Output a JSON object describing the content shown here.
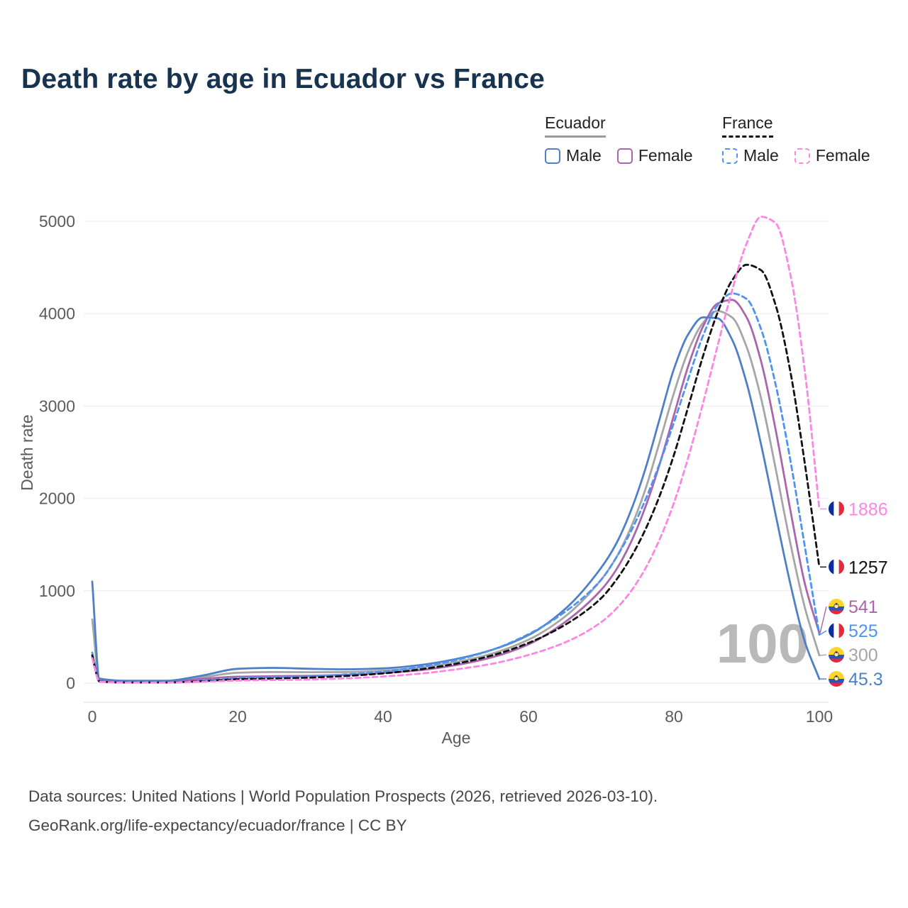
{
  "title": "Death rate by age in Ecuador vs France",
  "watermark": "100",
  "legend": {
    "groups": [
      {
        "label": "Ecuador",
        "style": "solid",
        "items": [
          {
            "label": "Male",
            "color": "#4d80c9"
          },
          {
            "label": "Female",
            "color": "#aa66ad"
          }
        ]
      },
      {
        "label": "France",
        "style": "dashed",
        "items": [
          {
            "label": "Male",
            "color": "#4f93f2"
          },
          {
            "label": "Female",
            "color": "#fb87e3"
          }
        ]
      }
    ]
  },
  "footer": {
    "line1": "Data sources: United Nations | World Population Prospects (2026, retrieved 2026-03-10).",
    "line2": "GeoRank.org/life-expectancy/ecuador/france | CC BY"
  },
  "chart_data": {
    "type": "line",
    "title": "Death rate by age in Ecuador vs France",
    "xlabel": "Age",
    "ylabel": "Death rate",
    "xlim": [
      0,
      100
    ],
    "ylim": [
      0,
      5000
    ],
    "xticks": [
      0,
      20,
      40,
      60,
      80,
      100
    ],
    "yticks": [
      0,
      1000,
      2000,
      3000,
      4000,
      5000
    ],
    "grid": "horizontal",
    "hovered_age": 100,
    "ages": [
      0,
      1,
      5,
      10,
      15,
      20,
      25,
      30,
      35,
      40,
      45,
      50,
      55,
      60,
      65,
      70,
      72,
      74,
      76,
      78,
      80,
      82,
      84,
      86,
      88,
      90,
      92,
      94,
      96,
      98,
      100
    ],
    "series": [
      {
        "name": "Ecuador Both sexes",
        "country": "Ecuador",
        "flag": "ecuador",
        "color": "#a6a6a6",
        "dash": "solid",
        "end_value": 300,
        "end_label": "300",
        "values": [
          690,
          42,
          22,
          22,
          62,
          112,
          120,
          118,
          120,
          135,
          168,
          228,
          320,
          470,
          720,
          1120,
          1350,
          1670,
          2080,
          2600,
          3140,
          3600,
          3900,
          4030,
          3960,
          3640,
          3080,
          2320,
          1520,
          820,
          300
        ]
      },
      {
        "name": "Ecuador Female",
        "country": "Ecuador",
        "flag": "ecuador",
        "color": "#aa66ad",
        "dash": "solid",
        "end_value": 541,
        "end_label": "541",
        "values": [
          280,
          35,
          18,
          18,
          45,
          70,
          75,
          80,
          90,
          110,
          140,
          195,
          280,
          420,
          660,
          1010,
          1220,
          1510,
          1890,
          2360,
          2900,
          3440,
          3860,
          4110,
          4150,
          3960,
          3480,
          2740,
          1880,
          1080,
          541
        ]
      },
      {
        "name": "Ecuador Male",
        "country": "Ecuador",
        "flag": "ecuador",
        "color": "#4d80c9",
        "dash": "solid",
        "end_value": 45.3,
        "end_label": "45.3",
        "values": [
          1100,
          50,
          25,
          25,
          80,
          155,
          165,
          155,
          150,
          160,
          195,
          260,
          360,
          520,
          800,
          1250,
          1500,
          1850,
          2300,
          2850,
          3400,
          3780,
          3960,
          3950,
          3720,
          3250,
          2580,
          1820,
          1080,
          450,
          45.3
        ]
      },
      {
        "name": "France Male",
        "country": "France",
        "flag": "france",
        "color": "#4f93f2",
        "dash": "dashed",
        "end_value": 525,
        "end_label": "525",
        "values": [
          330,
          20,
          8,
          8,
          25,
          55,
          65,
          75,
          95,
          125,
          175,
          250,
          360,
          530,
          770,
          1120,
          1350,
          1630,
          1970,
          2370,
          2820,
          3300,
          3760,
          4090,
          4220,
          4160,
          3830,
          3230,
          2420,
          1480,
          525
        ]
      },
      {
        "name": "France Both sexes",
        "country": "France",
        "flag": "france",
        "color": "#111111",
        "dash": "dashed",
        "end_value": 1257,
        "end_label": "1257",
        "values": [
          300,
          18,
          7,
          7,
          20,
          42,
          50,
          60,
          78,
          105,
          148,
          210,
          300,
          435,
          630,
          920,
          1110,
          1350,
          1650,
          2020,
          2470,
          3000,
          3540,
          4010,
          4360,
          4530,
          4470,
          4090,
          3380,
          2380,
          1257
        ]
      },
      {
        "name": "France Female",
        "country": "France",
        "flag": "france",
        "color": "#fb87e3",
        "dash": "dashed",
        "end_value": 1886,
        "end_label": "1886",
        "values": [
          270,
          16,
          6,
          6,
          15,
          28,
          33,
          40,
          52,
          72,
          102,
          148,
          210,
          305,
          440,
          660,
          800,
          985,
          1230,
          1550,
          1950,
          2450,
          3030,
          3650,
          4250,
          4760,
          5050,
          4980,
          4430,
          3380,
          1886
        ]
      }
    ]
  }
}
